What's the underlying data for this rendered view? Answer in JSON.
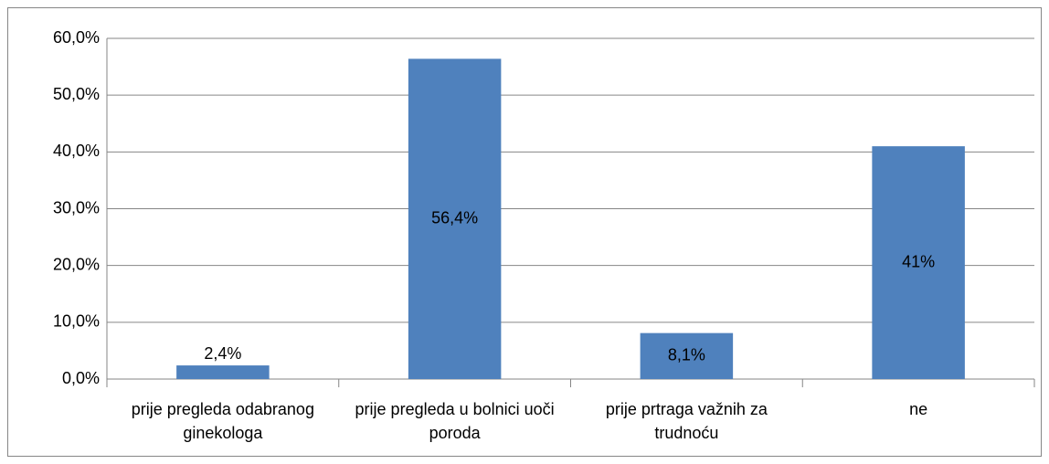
{
  "chart_data": {
    "type": "bar",
    "categories": [
      "prije pregleda odabranog ginekologa",
      "prije pregleda u bolnici uoči poroda",
      "prije prtraga važnih za trudnoću",
      "ne"
    ],
    "values": [
      2.4,
      56.4,
      8.1,
      41
    ],
    "value_labels": [
      "2,4%",
      "56,4%",
      "8,1%",
      "41%"
    ],
    "color": "#4f81bd",
    "ylim": [
      0,
      60
    ],
    "yticks": [
      {
        "value": 0,
        "label": "0,0%"
      },
      {
        "value": 10,
        "label": "10,0%"
      },
      {
        "value": 20,
        "label": "20,0%"
      },
      {
        "value": 30,
        "label": "30,0%"
      },
      {
        "value": 40,
        "label": "40,0%"
      },
      {
        "value": 50,
        "label": "50,0%"
      },
      {
        "value": 60,
        "label": "60,0%"
      }
    ],
    "grid": true
  }
}
